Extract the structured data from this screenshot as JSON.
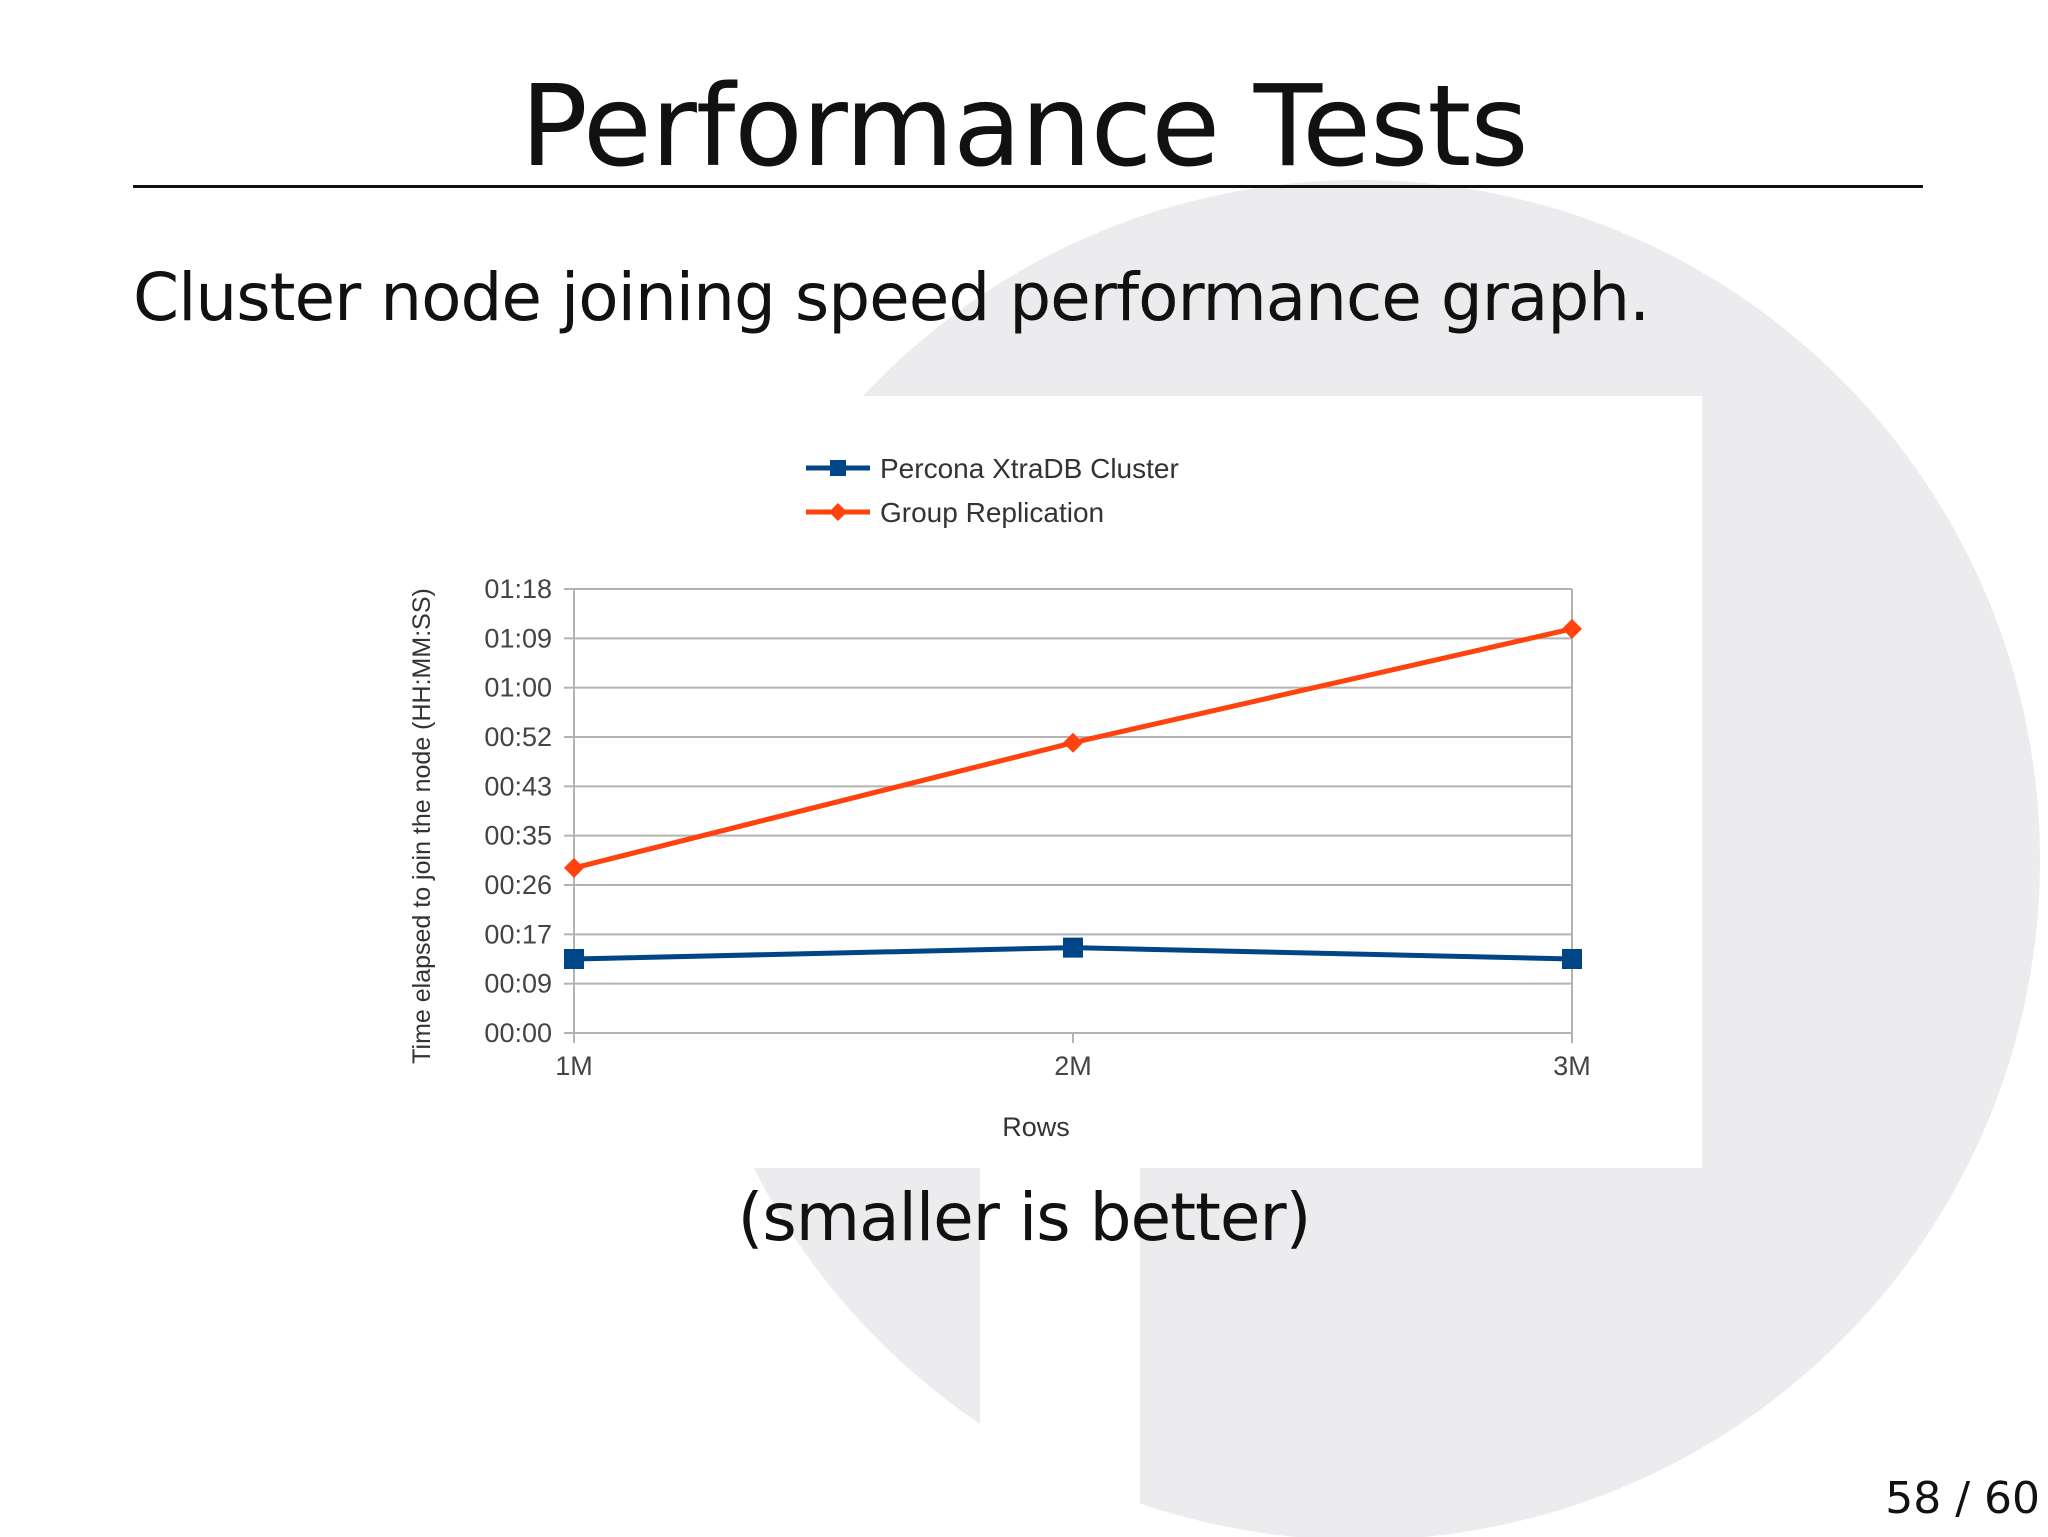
{
  "slide": {
    "title": "Performance Tests",
    "subtitle": "Cluster node joining speed performance graph.",
    "note": "(smaller is better)",
    "page_number": "58 / 60"
  },
  "colors": {
    "background": "#ffffff",
    "watermark": "#ecebee",
    "series_pxc": "#004586",
    "series_gr": "#ff420e",
    "grid": "#b3b3b3"
  },
  "chart_data": {
    "type": "line",
    "title": "",
    "xlabel": "Rows",
    "ylabel": "Time elapsed to join the node (HH:MM:SS)",
    "categories": [
      "1M",
      "2M",
      "3M"
    ],
    "y_tick_labels": [
      "00:00",
      "00:09",
      "00:17",
      "00:26",
      "00:35",
      "00:43",
      "00:52",
      "01:00",
      "01:09",
      "01:18"
    ],
    "ylim": [
      0,
      78
    ],
    "y_unit": "seconds",
    "grid": true,
    "legend_position": "top-center",
    "series": [
      {
        "name": "Percona XtraDB Cluster",
        "marker": "square",
        "color": "#004586",
        "values": [
          13,
          15,
          13
        ]
      },
      {
        "name": "Group Replication",
        "marker": "diamond",
        "color": "#ff420e",
        "values": [
          29,
          51,
          71
        ]
      }
    ]
  }
}
